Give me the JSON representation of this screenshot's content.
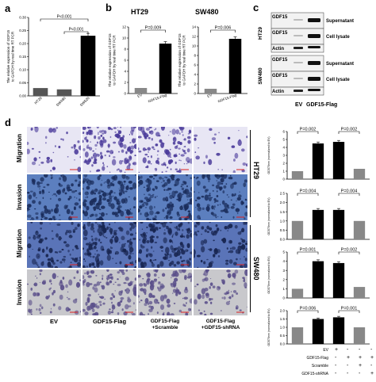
{
  "panels": {
    "a": {
      "letter": "a"
    },
    "b": {
      "letter": "b",
      "left_title": "HT29",
      "right_title": "SW480"
    },
    "c": {
      "letter": "c"
    },
    "d": {
      "letter": "d"
    }
  },
  "chart_data": [
    {
      "id": "a",
      "type": "bar",
      "categories": [
        "HT29",
        "SW480",
        "SW620"
      ],
      "values": [
        0.03,
        0.025,
        0.23
      ],
      "ylabel": "The relative expression of GDF15 to GAPDH by real time RT PCR",
      "ylim": [
        0,
        0.3
      ],
      "yticks": [
        "0.00",
        "0.05",
        "0.10",
        "0.15",
        "0.20",
        "0.25",
        "0.30"
      ],
      "annotations": [
        "P<0.001",
        "P<0.001"
      ],
      "colors": [
        "#555555",
        "#555555",
        "#000000"
      ]
    },
    {
      "id": "b-HT29",
      "type": "bar",
      "title": "HT29",
      "categories": [
        "EV",
        "GDF15-Flag"
      ],
      "values": [
        1,
        9
      ],
      "ylabel": "The relative expression of GDF15 to GAPDH by real time RT PCR",
      "ylim": [
        0,
        12
      ],
      "yticks": [
        "0",
        "2",
        "4",
        "6",
        "8",
        "10",
        "12"
      ],
      "annotations": [
        "P=0.009"
      ],
      "colors": [
        "#888888",
        "#000000"
      ]
    },
    {
      "id": "b-SW480",
      "type": "bar",
      "title": "SW480",
      "categories": [
        "EV",
        "GDF15-Flag"
      ],
      "values": [
        1,
        11.5
      ],
      "ylabel": "The relative expression of GDF15 to GAPDH by real time RT PCR",
      "ylim": [
        0,
        14
      ],
      "yticks": [
        "0",
        "2",
        "4",
        "6",
        "8",
        "10",
        "12",
        "14"
      ],
      "annotations": [
        "P=0.006"
      ],
      "colors": [
        "#888888",
        "#000000"
      ]
    },
    {
      "id": "d-HT29-migration",
      "type": "bar",
      "values": [
        1,
        4.5,
        4.7,
        1.3
      ],
      "ylabel": "OD570nm (normalized to EV)",
      "ylim": [
        0,
        6
      ],
      "yticks": [
        "0",
        "1",
        "2",
        "3",
        "4",
        "5",
        "6"
      ],
      "annotations": [
        "P=0.002",
        "P=0.002"
      ],
      "colors": [
        "#888888",
        "#000000",
        "#000000",
        "#888888"
      ]
    },
    {
      "id": "d-HT29-invasion",
      "type": "bar",
      "values": [
        1,
        1.6,
        1.6,
        1.0
      ],
      "ylabel": "OD570nm (normalized to EV)",
      "ylim": [
        0,
        2.5
      ],
      "yticks": [
        "0.0",
        "0.5",
        "1.0",
        "1.5",
        "2.0",
        "2.5"
      ],
      "annotations": [
        "P=0.004",
        "P=0.004"
      ],
      "colors": [
        "#888888",
        "#000000",
        "#000000",
        "#888888"
      ]
    },
    {
      "id": "d-SW480-migration",
      "type": "bar",
      "values": [
        1,
        4.0,
        3.8,
        1.2
      ],
      "ylabel": "OD570nm (normalized to EV)",
      "ylim": [
        0,
        5
      ],
      "yticks": [
        "0",
        "1",
        "2",
        "3",
        "4",
        "5"
      ],
      "annotations": [
        "P=0.001",
        "P=0.002"
      ],
      "colors": [
        "#888888",
        "#000000",
        "#000000",
        "#888888"
      ]
    },
    {
      "id": "d-SW480-invasion",
      "type": "bar",
      "values": [
        1,
        1.5,
        1.6,
        1.0
      ],
      "ylabel": "OD570nm (normalized to EV)",
      "ylim": [
        0,
        2.0
      ],
      "yticks": [
        "0.0",
        "0.5",
        "1.0",
        "1.5",
        "2.0"
      ],
      "annotations": [
        "P=0.006",
        "P=0.001"
      ],
      "colors": [
        "#888888",
        "#000000",
        "#000000",
        "#888888"
      ]
    }
  ],
  "blot": {
    "left_labels": [
      "GDF15",
      "GDF15",
      "Actin",
      "GDF15",
      "GDF15",
      "Actin"
    ],
    "right_labels": [
      "Supernatant",
      "Cell lysate",
      "Supernatant",
      "Cell lysate"
    ],
    "cell_lines": [
      "HT29",
      "SW480"
    ],
    "lanes": [
      "EV",
      "GDF15-Flag"
    ]
  },
  "micro": {
    "row_labels": [
      "Migration",
      "Invasion",
      "Migration",
      "Invasion"
    ],
    "side_labels": [
      "HT29",
      "SW480"
    ],
    "col_labels": [
      "EV",
      "GDF15-Flag",
      "GDF15-Flag\n+Scramble",
      "GDF15-Flag\n+GDF15-shRNA"
    ]
  },
  "legend_table": {
    "rows": [
      {
        "label": "EV",
        "marks": [
          "+",
          "-",
          "-",
          "-"
        ]
      },
      {
        "label": "GDF15-Flag",
        "marks": [
          "-",
          "+",
          "+",
          "+"
        ]
      },
      {
        "label": "Scramble",
        "marks": [
          "-",
          "-",
          "+",
          "-"
        ]
      },
      {
        "label": "GDF15-shRNA",
        "marks": [
          "-",
          "-",
          "-",
          "+"
        ]
      }
    ]
  }
}
